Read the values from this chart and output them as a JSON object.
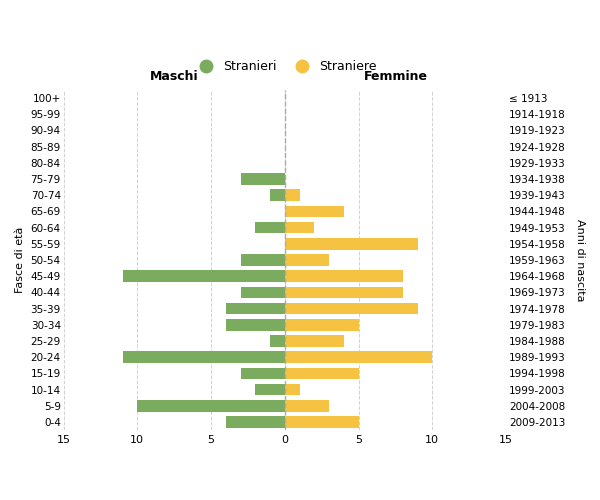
{
  "age_groups": [
    "100+",
    "95-99",
    "90-94",
    "85-89",
    "80-84",
    "75-79",
    "70-74",
    "65-69",
    "60-64",
    "55-59",
    "50-54",
    "45-49",
    "40-44",
    "35-39",
    "30-34",
    "25-29",
    "20-24",
    "15-19",
    "10-14",
    "5-9",
    "0-4"
  ],
  "birth_years": [
    "≤ 1913",
    "1914-1918",
    "1919-1923",
    "1924-1928",
    "1929-1933",
    "1934-1938",
    "1939-1943",
    "1944-1948",
    "1949-1953",
    "1954-1958",
    "1959-1963",
    "1964-1968",
    "1969-1973",
    "1974-1978",
    "1979-1983",
    "1984-1988",
    "1989-1993",
    "1994-1998",
    "1999-2003",
    "2004-2008",
    "2009-2013"
  ],
  "maschi": [
    0,
    0,
    0,
    0,
    0,
    3,
    1,
    0,
    2,
    0,
    3,
    11,
    3,
    4,
    4,
    1,
    11,
    3,
    2,
    10,
    4
  ],
  "femmine": [
    0,
    0,
    0,
    0,
    0,
    0,
    1,
    4,
    2,
    9,
    3,
    8,
    8,
    9,
    5,
    4,
    10,
    5,
    1,
    3,
    5
  ],
  "male_color": "#7aab5e",
  "female_color": "#f5c242",
  "background_color": "#ffffff",
  "grid_color": "#cccccc",
  "center_line_color": "#aaaaaa",
  "xlim": 15,
  "ylabel_left": "Fasce di età",
  "ylabel_right": "Anni di nascita",
  "xlabel_left": "Maschi",
  "xlabel_right": "Femmine",
  "legend_stranieri": "Stranieri",
  "legend_straniere": "Straniere"
}
